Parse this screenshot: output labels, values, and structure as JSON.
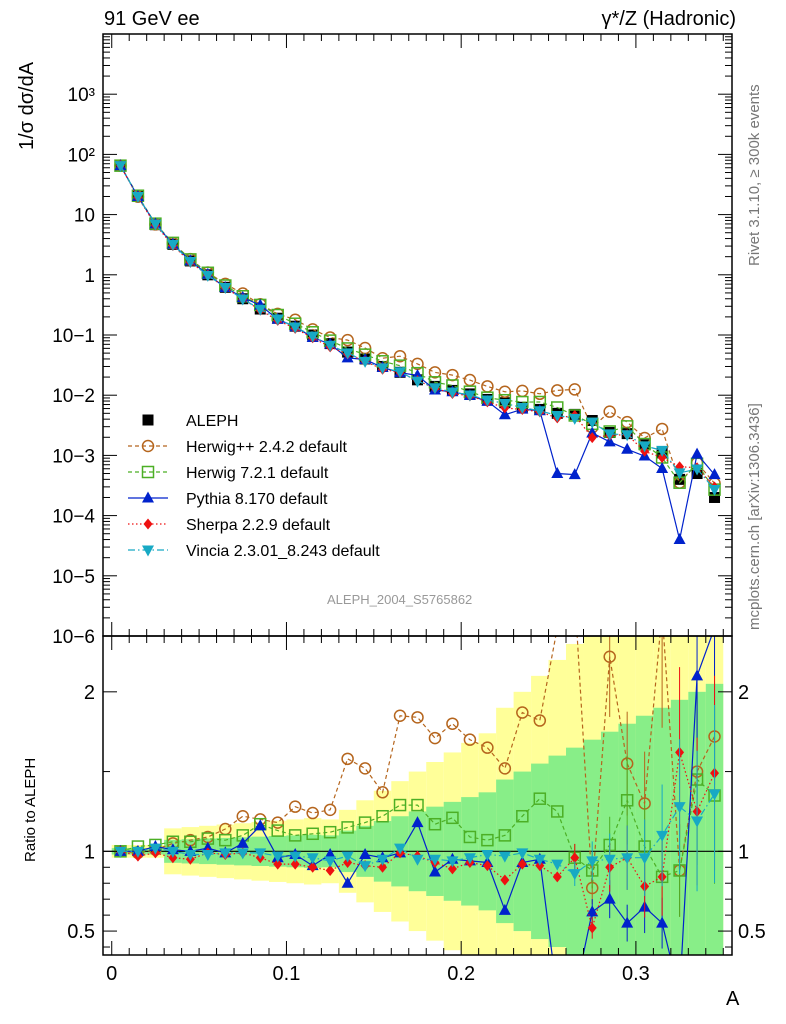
{
  "header": {
    "left": "91 GeV ee",
    "right": "γ*/Z (Hadronic)"
  },
  "side_text": {
    "rivet": "Rivet 3.1.10, ≥ 300k events",
    "mcplots": "mcplots.cern.ch [arXiv:1306.3436]"
  },
  "watermark": "ALEPH_2004_S5765862",
  "colors": {
    "ALEPH": "#000000",
    "Herwig++": "#b5651d",
    "Herwig7": "#4caf25",
    "Pythia": "#0022cc",
    "Sherpa": "#ee1111",
    "Vincia": "#17a9c4",
    "band_yellow": "#ffff99",
    "band_green": "#88ee88"
  },
  "chart_data": {
    "type": "scatter",
    "xlabel": "A",
    "ylabel_main": "1/σ dσ/dA",
    "ylabel_ratio": "Ratio to ALEPH",
    "main_yscale": "log",
    "main_ylim": [
      1e-06,
      10000.0
    ],
    "ratio_ylim": [
      0.35,
      2.35
    ],
    "xlim": [
      -0.005,
      0.355
    ],
    "x_ticks": [
      "0",
      "0.1",
      "0.2",
      "0.3"
    ],
    "main_y_ticks": [
      "10−6",
      "10−5",
      "10−4",
      "10−3",
      "10−2",
      "10−1",
      "1",
      "10",
      "10²",
      "10³"
    ],
    "ratio_y_ticks": [
      "0.5",
      "1",
      "2"
    ],
    "legend_position": "bottom-left",
    "x": [
      0.005,
      0.015,
      0.025,
      0.035,
      0.045,
      0.055,
      0.065,
      0.075,
      0.085,
      0.095,
      0.105,
      0.115,
      0.125,
      0.135,
      0.145,
      0.155,
      0.165,
      0.175,
      0.185,
      0.195,
      0.205,
      0.215,
      0.225,
      0.235,
      0.245,
      0.255,
      0.265,
      0.275,
      0.285,
      0.295,
      0.305,
      0.315,
      0.325,
      0.335,
      0.345
    ],
    "series": [
      {
        "name": "ALEPH",
        "marker": "square-filled",
        "line": "none",
        "values": [
          65,
          20,
          6.8,
          3.2,
          1.7,
          1.0,
          0.62,
          0.4,
          0.27,
          0.19,
          0.14,
          0.1,
          0.072,
          0.052,
          0.04,
          0.03,
          0.024,
          0.018,
          0.014,
          0.012,
          0.0105,
          0.0085,
          0.0075,
          0.0063,
          0.0058,
          0.005,
          0.0048,
          0.0038,
          0.0024,
          0.0023,
          0.0015,
          0.0011,
          0.0004,
          0.0005,
          0.0002
        ]
      },
      {
        "name": "Herwig++ 2.4.2 default",
        "marker": "circle-open",
        "line": "dashed",
        "ratio": [
          1.0,
          0.99,
          1.01,
          1.05,
          1.07,
          1.09,
          1.14,
          1.22,
          1.2,
          1.18,
          1.28,
          1.24,
          1.26,
          1.58,
          1.52,
          1.37,
          1.85,
          1.84,
          1.71,
          1.8,
          1.7,
          1.65,
          1.52,
          1.87,
          1.82,
          2.4,
          2.6,
          0.77,
          2.22,
          1.55,
          1.3,
          2.5,
          0.88,
          1.5,
          1.72
        ]
      },
      {
        "name": "Herwig 7.2.1 default",
        "marker": "square-open",
        "line": "dashed",
        "ratio": [
          1.0,
          1.03,
          1.04,
          1.06,
          1.06,
          1.08,
          1.07,
          1.1,
          1.17,
          1.13,
          1.1,
          1.11,
          1.12,
          1.15,
          1.18,
          1.22,
          1.29,
          1.29,
          1.17,
          1.21,
          1.09,
          1.07,
          1.1,
          1.22,
          1.33,
          1.25,
          0.96,
          0.88,
          1.04,
          1.32,
          1.03,
          0.84,
          0.88,
          1.45,
          1.35
        ]
      },
      {
        "name": "Pythia 8.170 default",
        "marker": "triangle-up",
        "line": "solid",
        "ratio": [
          1.0,
          1.0,
          1.03,
          1.01,
          1.0,
          1.02,
          0.99,
          1.05,
          1.16,
          0.96,
          0.98,
          0.91,
          0.98,
          0.8,
          0.98,
          0.96,
          0.99,
          1.18,
          0.87,
          0.95,
          0.94,
          0.93,
          0.63,
          0.93,
          0.95,
          0.1,
          0.1,
          0.62,
          0.7,
          0.55,
          0.65,
          0.55,
          0.1,
          2.1,
          2.4
        ]
      },
      {
        "name": "Sherpa 2.2.9 default",
        "marker": "diamond",
        "line": "dotted",
        "ratio": [
          1.0,
          0.97,
          0.99,
          0.96,
          0.95,
          0.99,
          0.98,
          0.99,
          0.96,
          0.92,
          0.92,
          0.9,
          0.88,
          0.93,
          0.91,
          0.9,
          0.99,
          0.97,
          0.93,
          0.89,
          0.93,
          0.91,
          0.82,
          0.92,
          0.91,
          0.84,
          0.96,
          0.52,
          0.9,
          0.96,
          0.78,
          0.84,
          1.62,
          1.25,
          1.49
        ]
      },
      {
        "name": "Vincia 2.3.01_8.243 default",
        "marker": "triangle-down",
        "line": "dashdot",
        "ratio": [
          1.0,
          1.0,
          1.02,
          1.0,
          0.98,
          0.98,
          0.99,
          0.99,
          0.99,
          0.97,
          0.97,
          0.96,
          0.94,
          0.97,
          0.91,
          0.95,
          1.02,
          0.95,
          0.95,
          0.94,
          0.96,
          0.98,
          0.97,
          0.99,
          0.95,
          0.92,
          0.86,
          0.94,
          0.95,
          0.96,
          0.96,
          1.1,
          1.28,
          1.19,
          1.36
        ]
      }
    ]
  }
}
